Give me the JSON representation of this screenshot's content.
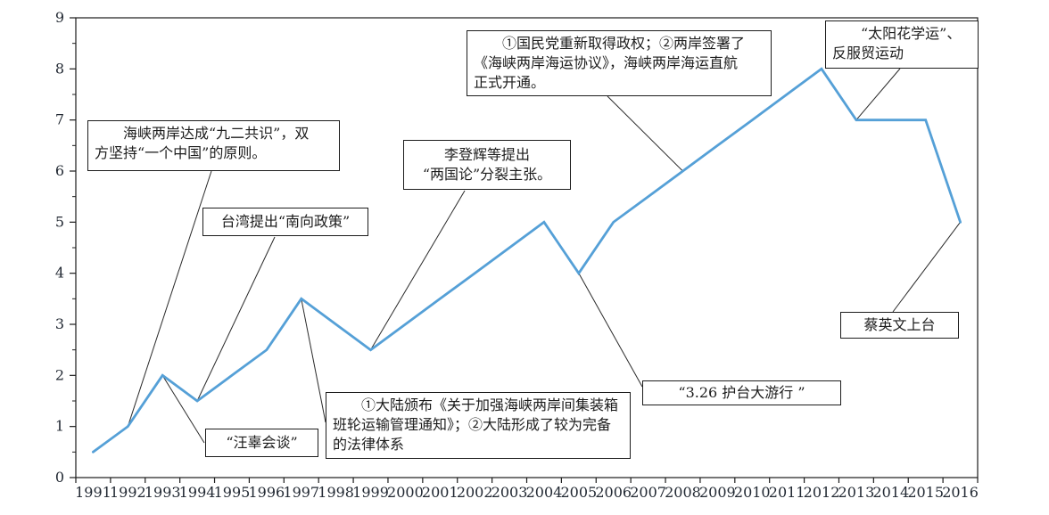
{
  "chart_data": {
    "type": "line",
    "title": "",
    "xlabel": "",
    "ylabel": "",
    "categories": [
      "1991",
      "1992",
      "1993",
      "1994",
      "1995",
      "1996",
      "1997",
      "1998",
      "1999",
      "2000",
      "2001",
      "2002",
      "2003",
      "2004",
      "2005",
      "2006",
      "2007",
      "2008",
      "2009",
      "2010",
      "2011",
      "2012",
      "2013",
      "2014",
      "2015",
      "2016"
    ],
    "series": [
      {
        "name": "cross-strait-events-line",
        "values": [
          0.5,
          1,
          2,
          1.5,
          2,
          2.5,
          3.5,
          3,
          2.5,
          3,
          3.5,
          4,
          4.5,
          5,
          4,
          5,
          5.5,
          6,
          6.5,
          7,
          7.5,
          8,
          7,
          7,
          7,
          5
        ]
      }
    ],
    "ylim": [
      0,
      9
    ],
    "yticks": [
      "0",
      "1",
      "2",
      "3",
      "4",
      "5",
      "6",
      "7",
      "8",
      "9"
    ],
    "grid": false,
    "legend": "none",
    "line_color": "#55a0d7",
    "axis_color": "#1c1c1c",
    "annotations": [
      {
        "id": "consensus-1992",
        "text": "海峡两岸达成“九二共识”，双\n方坚持“一个中国”的原则。",
        "anchor": {
          "year": "1992",
          "value": 1
        }
      },
      {
        "id": "southward-policy",
        "text": "台湾提出“南向政策”",
        "anchor": {
          "year": "1994",
          "value": 1.5
        }
      },
      {
        "id": "wang-koo-talks",
        "text": "“汪辜会谈”",
        "anchor": {
          "year": "1993",
          "value": 2
        }
      },
      {
        "id": "two-states-theory",
        "text": "李登辉等提出\n“两国论”分裂主张。",
        "anchor": {
          "year": "1999",
          "value": 2.5
        }
      },
      {
        "id": "mainland-regulations",
        "text": "①大陆颁布《关于加强海峡两岸间集装箱\n班轮运输管理通知》；②大陆形成了较为完备\n的法律体系",
        "anchor": {
          "year": "1997",
          "value": 3.5
        }
      },
      {
        "id": "kmt-shipping-accord",
        "text": "①国民党重新取得政权；②两岸签署了\n《海峡两岸海运协议》，海峡两岸海运直航\n正式开通。",
        "anchor": {
          "year": "2008",
          "value": 6
        }
      },
      {
        "id": "sunflower-movement",
        "text": "“太阳花学运”、\n反服贸运动",
        "anchor": {
          "year": "2013",
          "value": 7
        }
      },
      {
        "id": "march-326-parade",
        "text": "“3.26 护台大游行 ”",
        "anchor": {
          "year": "2005",
          "value": 4
        }
      },
      {
        "id": "tsai-takes-office",
        "text": "蔡英文上台",
        "anchor": {
          "year": "2016",
          "value": 5
        }
      }
    ]
  }
}
